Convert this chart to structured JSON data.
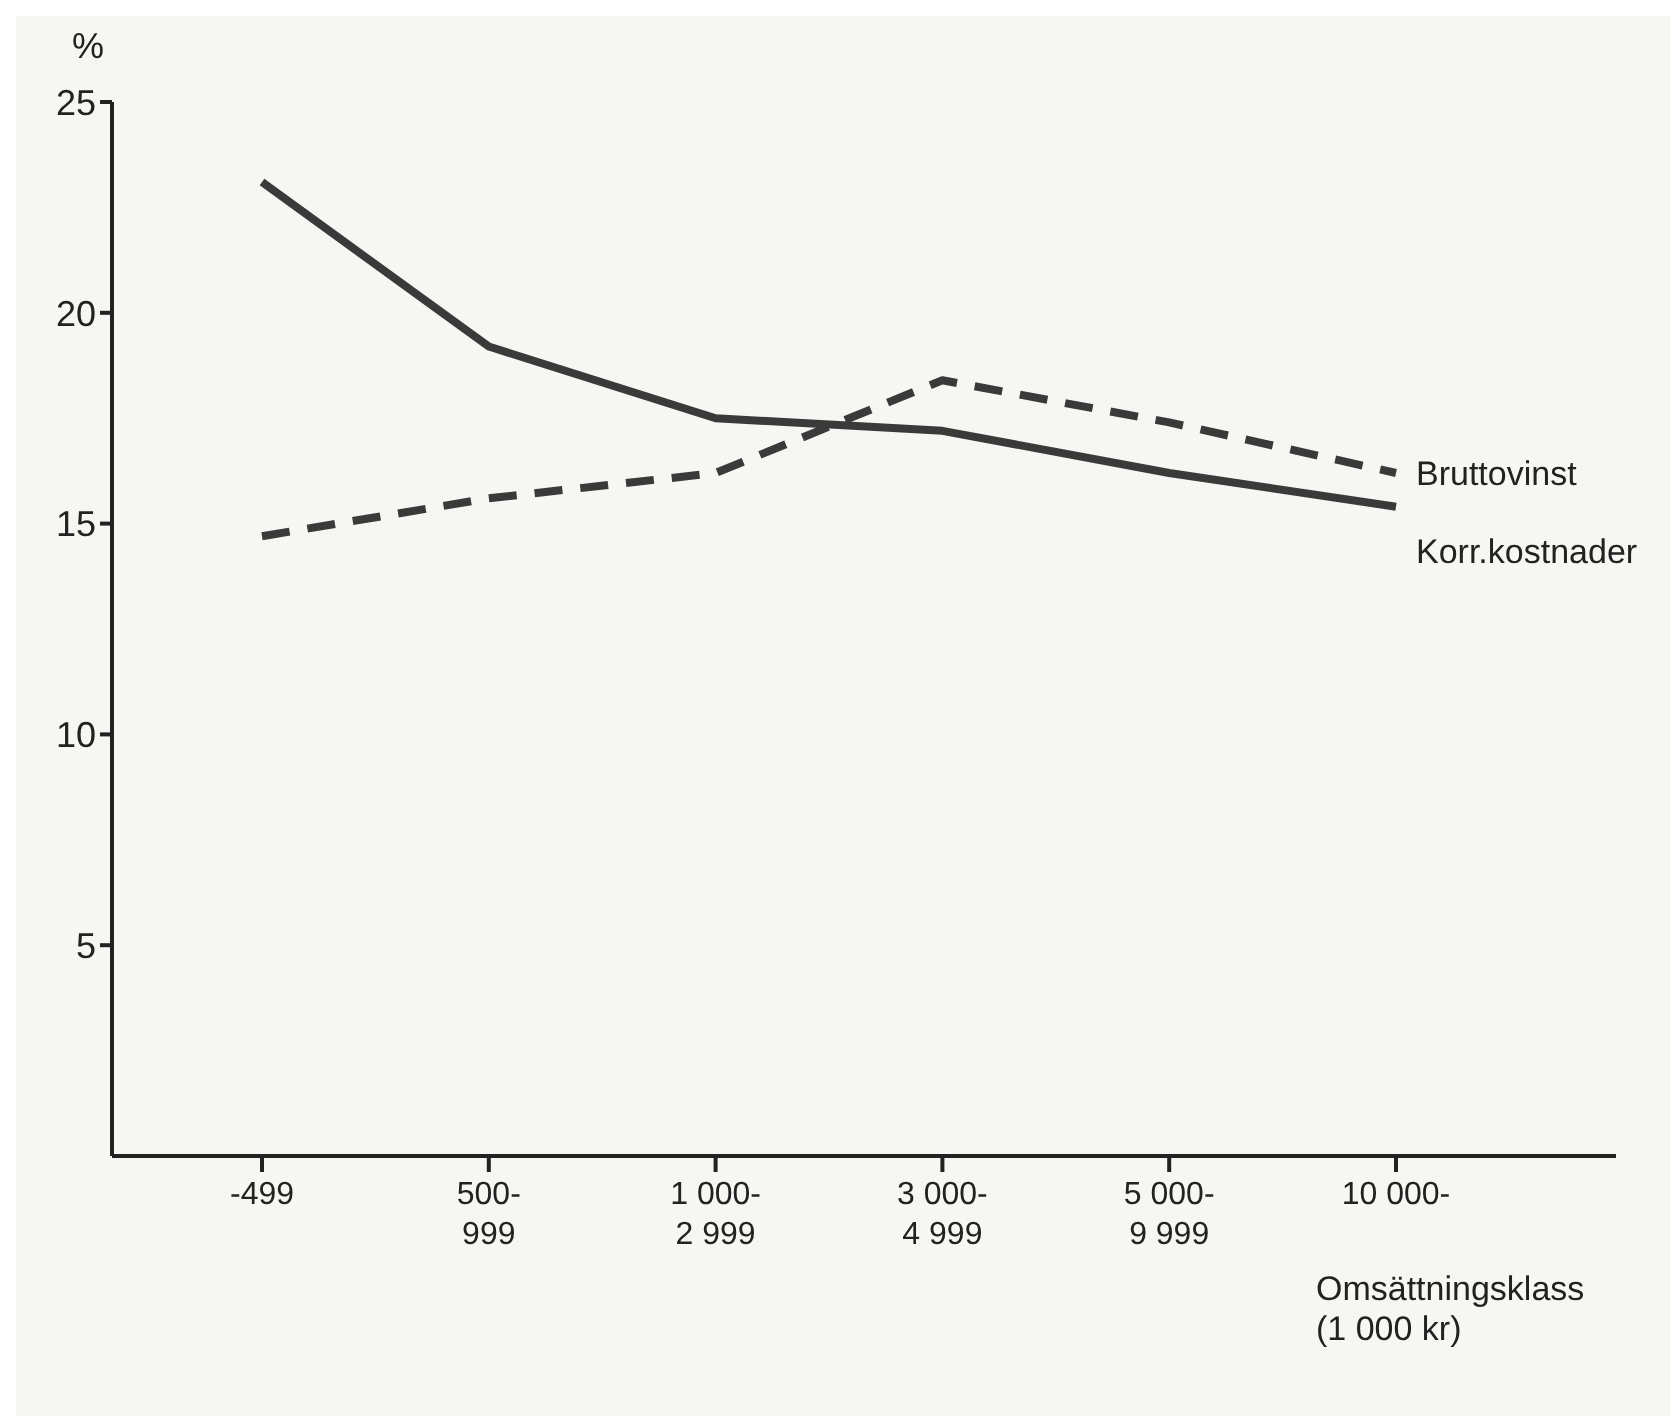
{
  "chart_data": {
    "type": "line",
    "ylabel": "%",
    "xlabel": "Omsättningsklass\n(1 000 kr)",
    "categories": [
      "-499",
      "500-\n999",
      "1 000-\n2 999",
      "3 000-\n4 999",
      "5 000-\n9 999",
      "10 000-"
    ],
    "series": [
      {
        "name": "Bruttovinst",
        "color": "#3a3a3a",
        "line_style": "dashed",
        "values": [
          14.7,
          15.6,
          16.2,
          18.4,
          17.4,
          16.2
        ]
      },
      {
        "name": "Korr.kostnader",
        "color": "#3a3a3a",
        "line_style": "solid",
        "values": [
          23.1,
          19.2,
          17.5,
          17.2,
          16.2,
          15.4
        ]
      }
    ],
    "ylim": [
      0,
      25
    ],
    "yticks": [
      5,
      10,
      15,
      20,
      25
    ],
    "grid": false,
    "legend": false,
    "marker": "none"
  }
}
